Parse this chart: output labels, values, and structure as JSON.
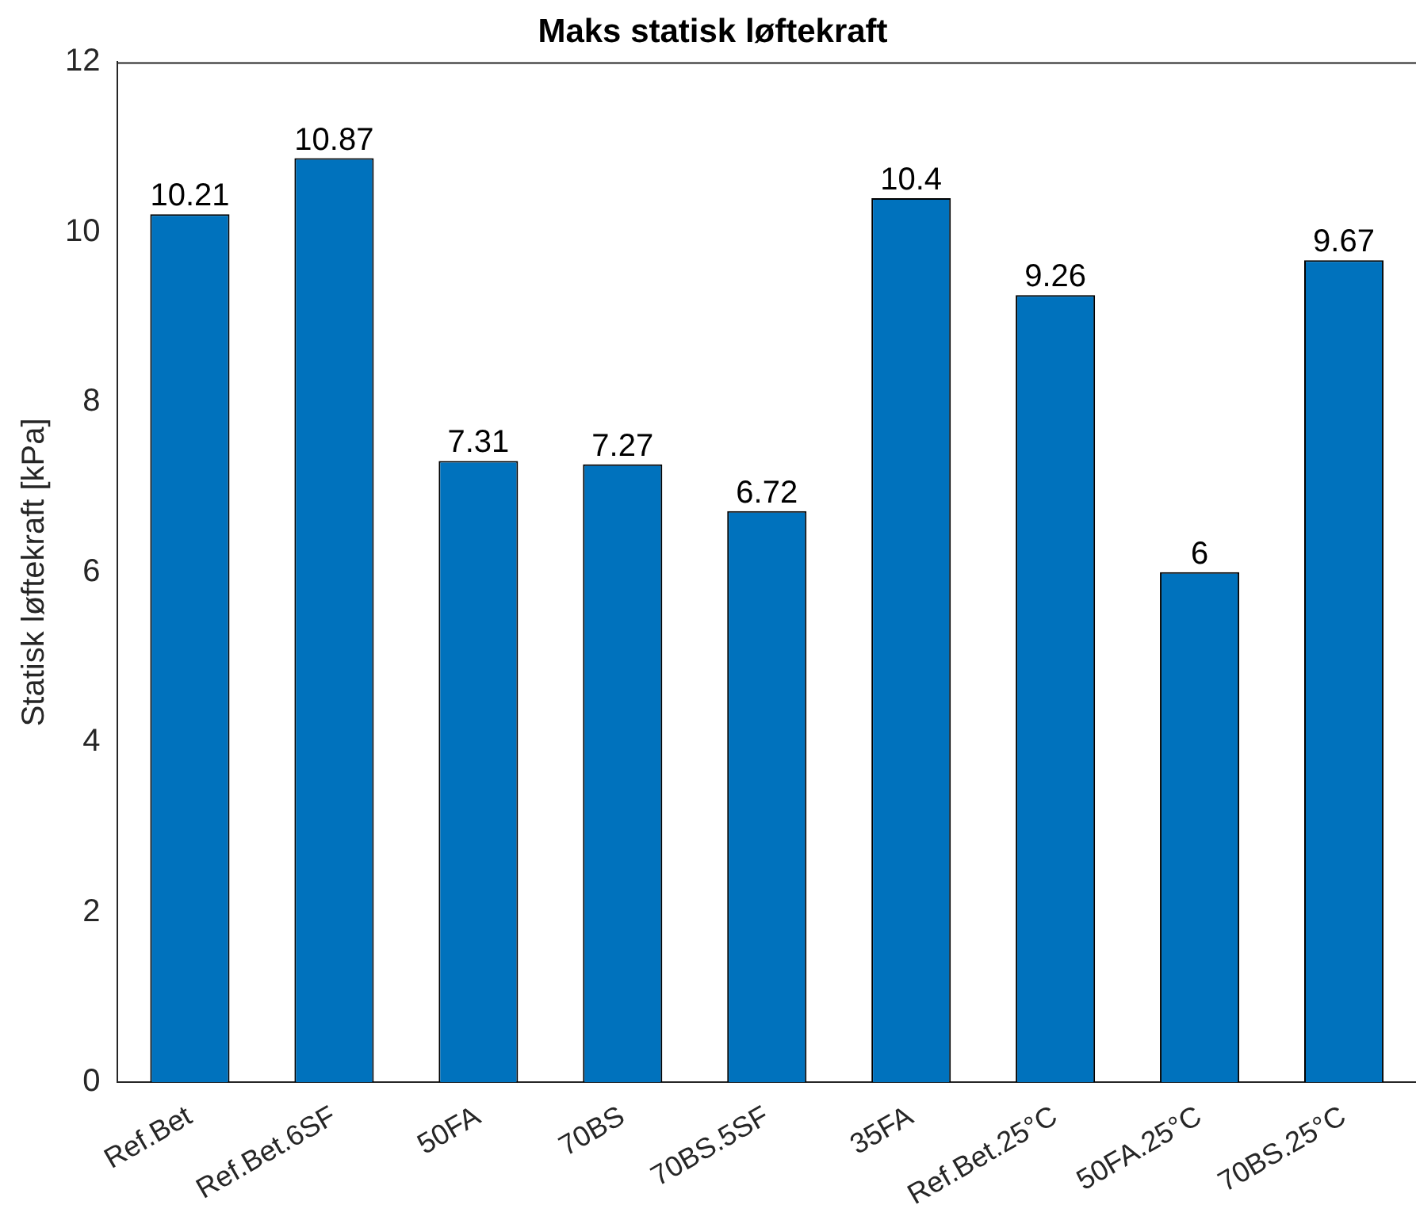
{
  "chart_data": {
    "type": "bar",
    "title": "Maks statisk løftekraft",
    "ylabel": "Statisk løftekraft [kPa]",
    "categories": [
      "Ref.Bet",
      "Ref.Bet.6SF",
      "50FA",
      "70BS",
      "70BS.5SF",
      "35FA",
      "Ref.Bet.25°C",
      "50FA.25°C",
      "70BS.25°C"
    ],
    "values": [
      10.21,
      10.87,
      7.31,
      7.27,
      6.72,
      10.4,
      9.26,
      6,
      9.67
    ],
    "color": "#0072bd",
    "ylim": [
      0,
      12
    ],
    "yticks": [
      0,
      2,
      4,
      6,
      8,
      10,
      12
    ],
    "grid": false,
    "legend": false,
    "data_labels": true
  }
}
